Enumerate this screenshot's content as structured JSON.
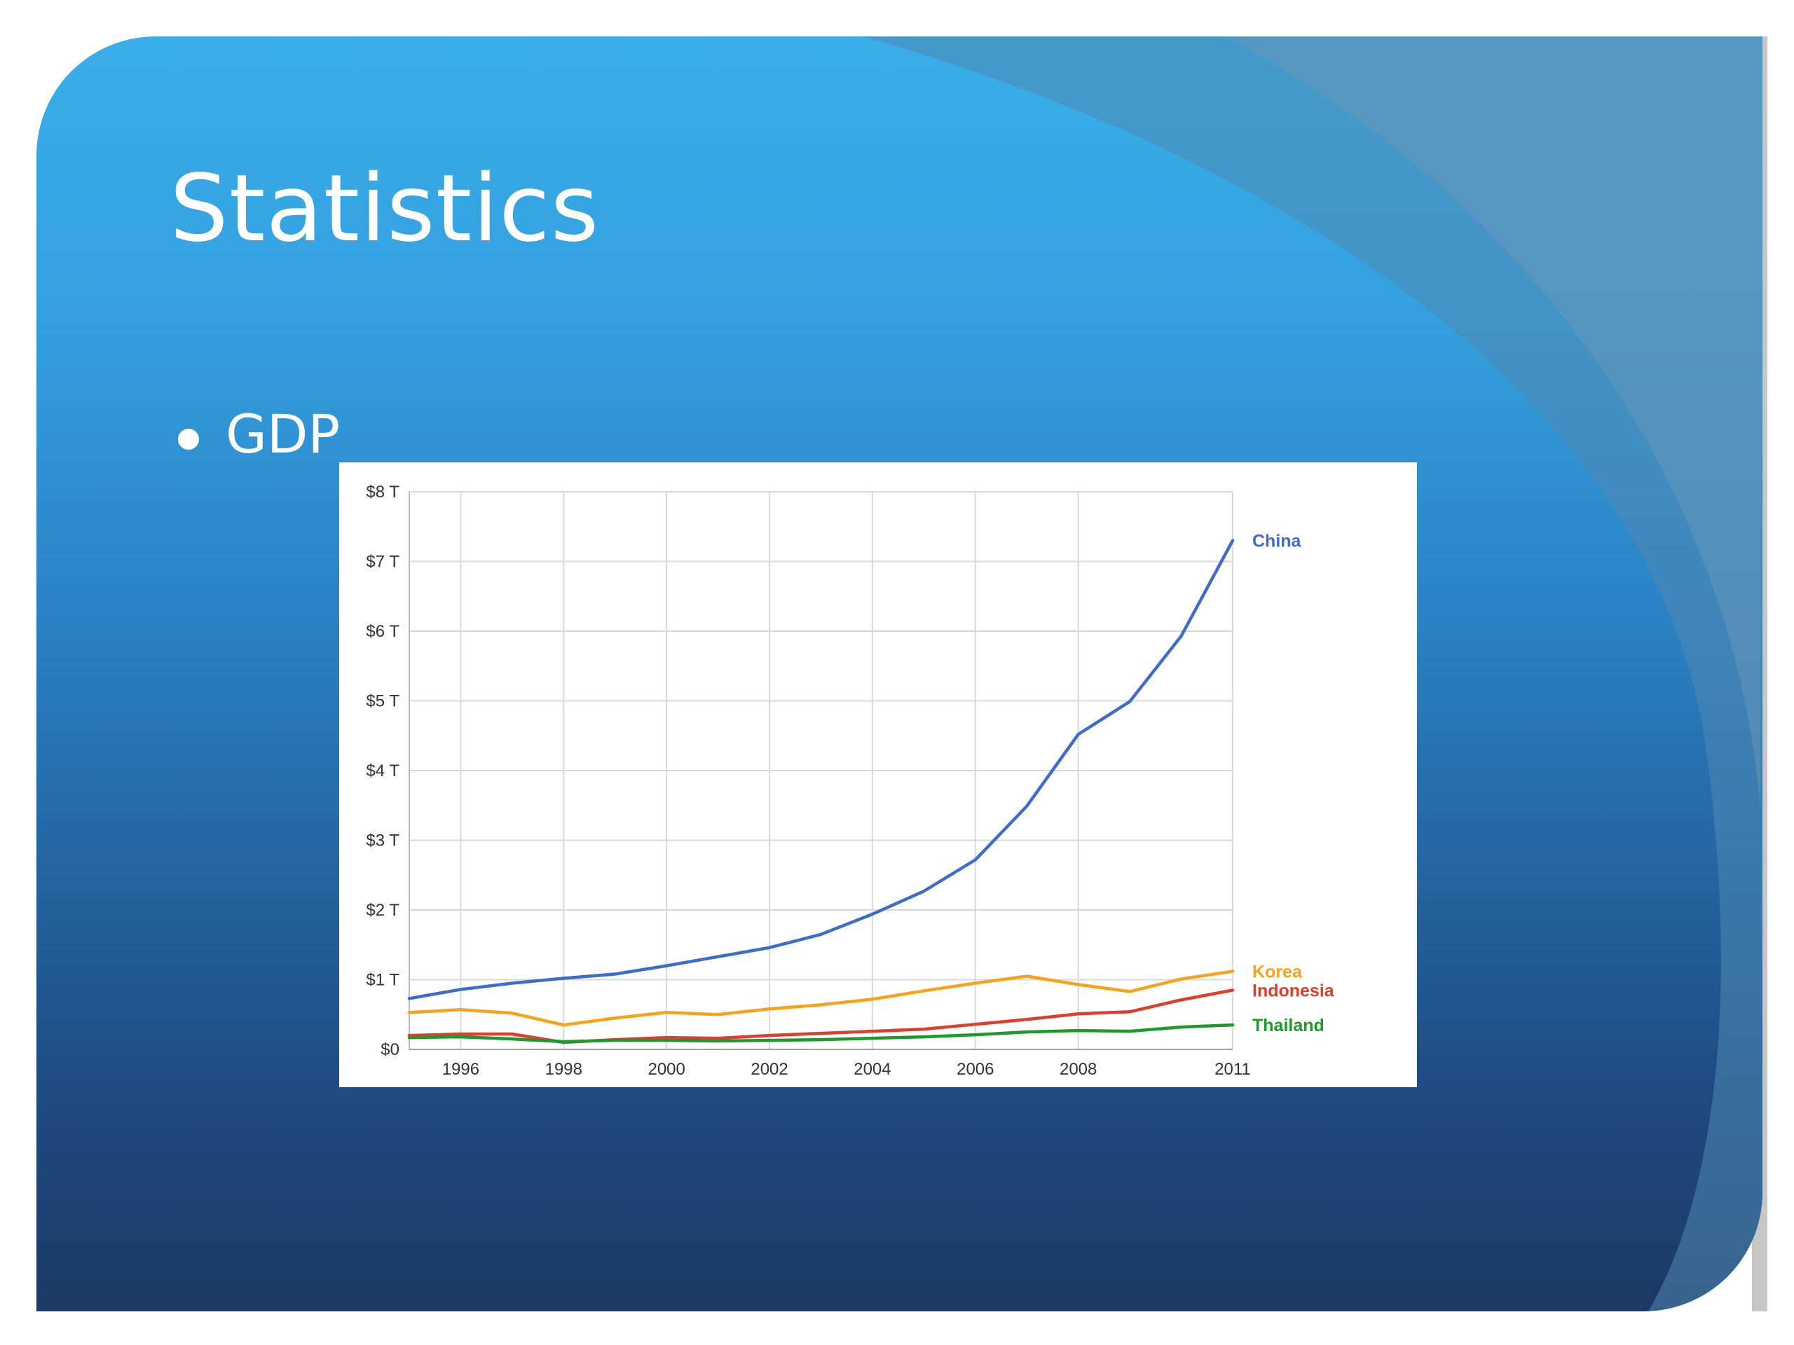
{
  "slide": {
    "title": "Statistics",
    "bullet": "GDP",
    "colors": {
      "background_top": "#3aaee9",
      "background_bottom": "#1c3964",
      "text": "#ffffff"
    }
  },
  "chart_data": {
    "type": "line",
    "title": "",
    "xlabel": "",
    "ylabel": "",
    "x": [
      1995,
      1996,
      1997,
      1998,
      1999,
      2000,
      2001,
      2002,
      2003,
      2004,
      2005,
      2006,
      2007,
      2008,
      2009,
      2010,
      2011
    ],
    "xlim": [
      1995,
      2011
    ],
    "ylim": [
      0,
      8
    ],
    "x_ticks": [
      {
        "value": 1996,
        "label": "1996"
      },
      {
        "value": 1998,
        "label": "1998"
      },
      {
        "value": 2000,
        "label": "2000"
      },
      {
        "value": 2002,
        "label": "2002"
      },
      {
        "value": 2004,
        "label": "2004"
      },
      {
        "value": 2006,
        "label": "2006"
      },
      {
        "value": 2008,
        "label": "2008"
      },
      {
        "value": 2011,
        "label": "2011"
      }
    ],
    "y_ticks": [
      {
        "value": 0,
        "label": "$0"
      },
      {
        "value": 1,
        "label": "$1 T"
      },
      {
        "value": 2,
        "label": "$2 T"
      },
      {
        "value": 3,
        "label": "$3 T"
      },
      {
        "value": 4,
        "label": "$4 T"
      },
      {
        "value": 5,
        "label": "$5 T"
      },
      {
        "value": 6,
        "label": "$6 T"
      },
      {
        "value": 7,
        "label": "$7 T"
      },
      {
        "value": 8,
        "label": "$8 T"
      }
    ],
    "grid": true,
    "legend": "inline labels at right end of lines",
    "series": [
      {
        "name": "China",
        "color": "#3d6cc9",
        "values": [
          0.73,
          0.86,
          0.95,
          1.02,
          1.08,
          1.2,
          1.33,
          1.46,
          1.65,
          1.94,
          2.27,
          2.72,
          3.49,
          4.52,
          4.99,
          5.93,
          7.3
        ]
      },
      {
        "name": "Korea",
        "color": "#f7a21b",
        "values": [
          0.53,
          0.57,
          0.52,
          0.35,
          0.45,
          0.53,
          0.5,
          0.58,
          0.64,
          0.72,
          0.84,
          0.95,
          1.05,
          0.93,
          0.83,
          1.01,
          1.12
        ]
      },
      {
        "name": "Indonesia",
        "color": "#dc3f2b",
        "values": [
          0.2,
          0.22,
          0.22,
          0.1,
          0.14,
          0.17,
          0.16,
          0.2,
          0.23,
          0.26,
          0.29,
          0.36,
          0.43,
          0.51,
          0.54,
          0.71,
          0.85
        ]
      },
      {
        "name": "Thailand",
        "color": "#1d9a2a",
        "values": [
          0.17,
          0.18,
          0.15,
          0.11,
          0.13,
          0.13,
          0.12,
          0.13,
          0.14,
          0.16,
          0.18,
          0.21,
          0.25,
          0.27,
          0.26,
          0.32,
          0.35
        ]
      }
    ]
  }
}
